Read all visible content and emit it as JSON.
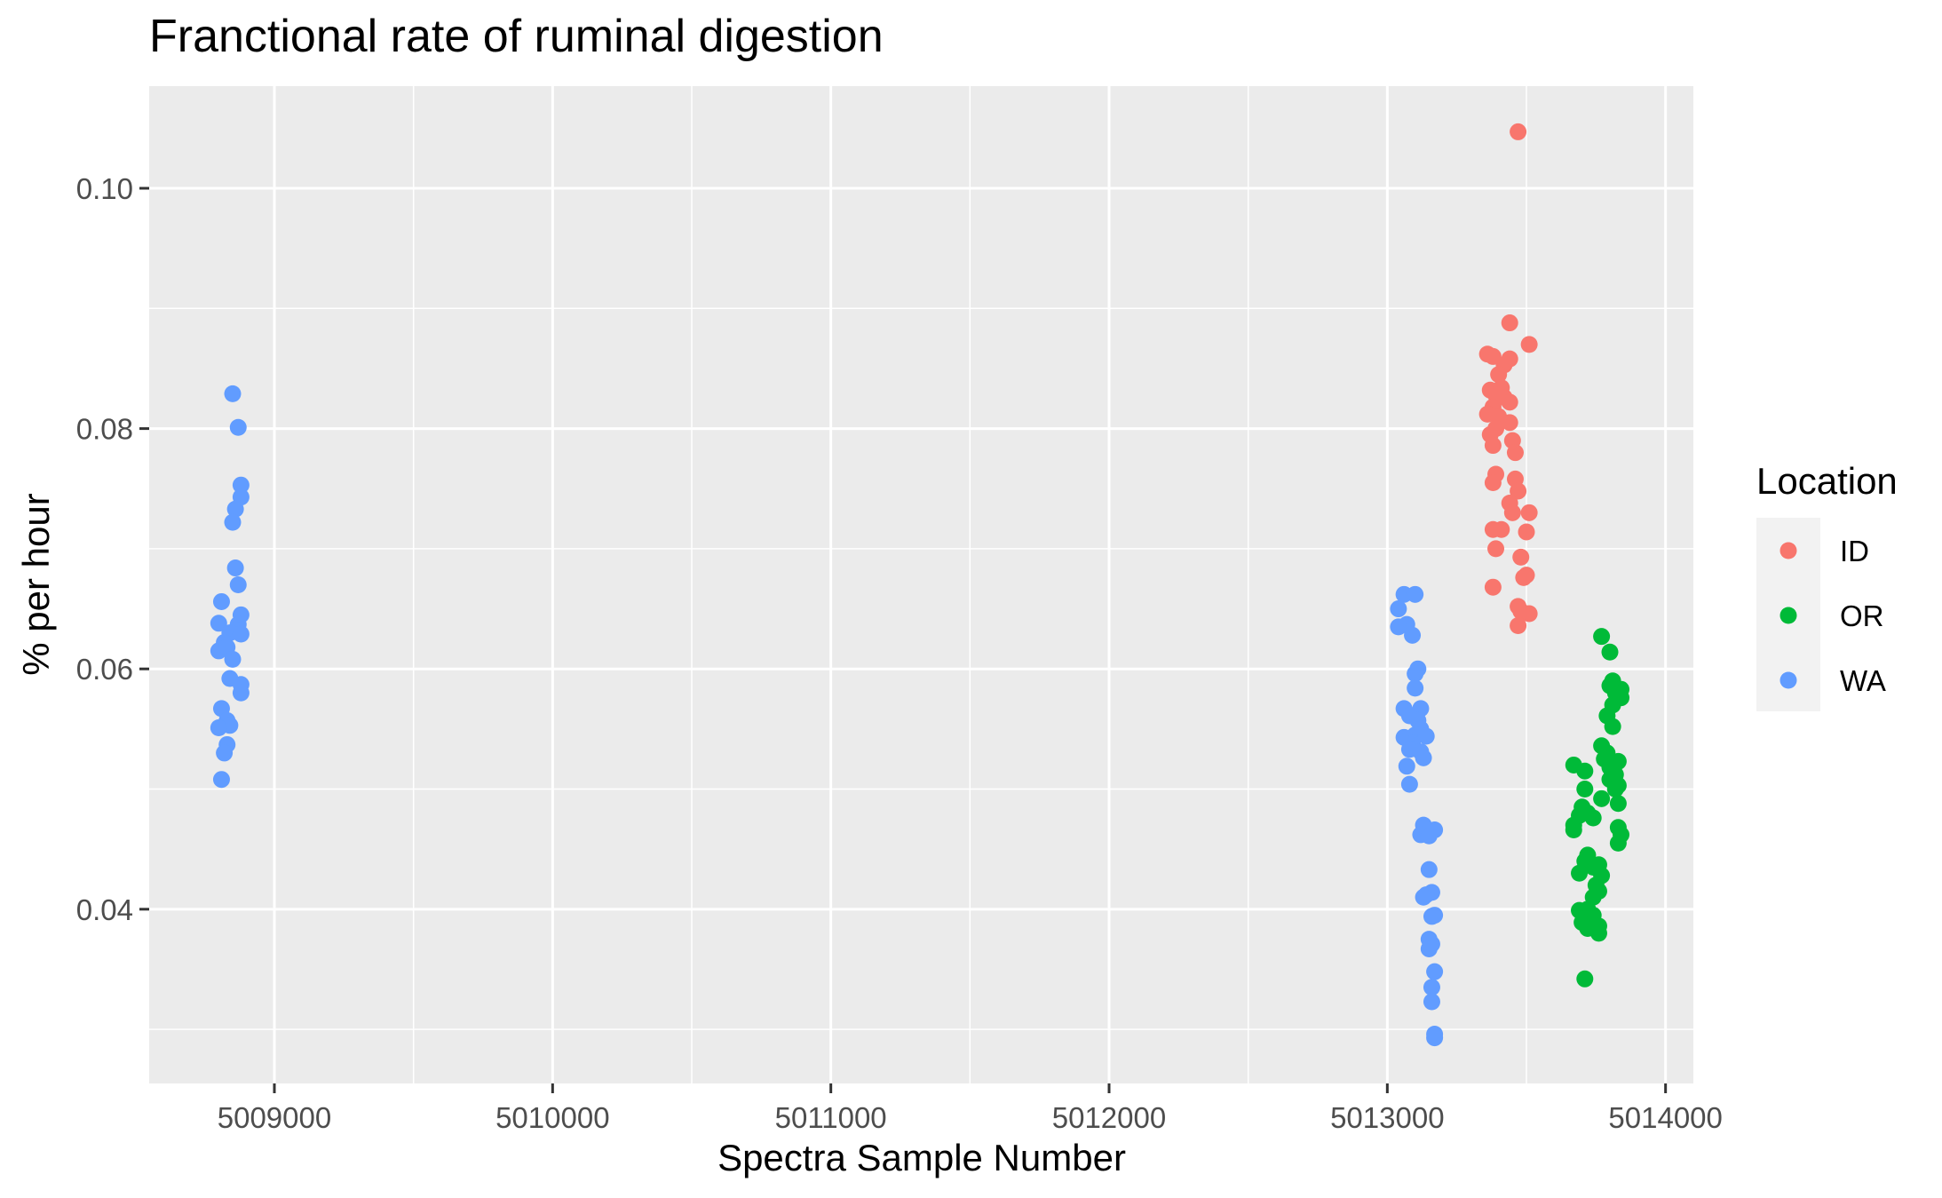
{
  "chart_data": {
    "type": "scatter",
    "title": "Franctional rate of ruminal digestion",
    "xlabel": "Spectra Sample Number",
    "ylabel": "% per hour",
    "xlim": [
      5008550,
      5014100
    ],
    "ylim": [
      0.0255,
      0.1085
    ],
    "x_ticks": [
      5009000,
      5010000,
      5011000,
      5012000,
      5013000,
      5014000
    ],
    "x_tick_labels": [
      "5009000",
      "5010000",
      "5011000",
      "5012000",
      "5013000",
      "5014000"
    ],
    "y_ticks": [
      0.04,
      0.06,
      0.08,
      0.1
    ],
    "y_tick_labels": [
      "0.04",
      "0.06",
      "0.08",
      "0.10"
    ],
    "grid": true,
    "legend": {
      "title": "Location",
      "position": "right"
    },
    "series": [
      {
        "name": "ID",
        "color": "#F8766D",
        "points": [
          [
            5013470,
            0.1047
          ],
          [
            5013440,
            0.0888
          ],
          [
            5013510,
            0.087
          ],
          [
            5013360,
            0.0862
          ],
          [
            5013380,
            0.086
          ],
          [
            5013440,
            0.0858
          ],
          [
            5013420,
            0.0853
          ],
          [
            5013400,
            0.0845
          ],
          [
            5013370,
            0.0832
          ],
          [
            5013410,
            0.0834
          ],
          [
            5013390,
            0.0828
          ],
          [
            5013420,
            0.0826
          ],
          [
            5013440,
            0.0822
          ],
          [
            5013380,
            0.0818
          ],
          [
            5013360,
            0.0812
          ],
          [
            5013400,
            0.081
          ],
          [
            5013440,
            0.0805
          ],
          [
            5013390,
            0.08
          ],
          [
            5013370,
            0.0795
          ],
          [
            5013450,
            0.079
          ],
          [
            5013380,
            0.0786
          ],
          [
            5013460,
            0.078
          ],
          [
            5013390,
            0.0762
          ],
          [
            5013460,
            0.0758
          ],
          [
            5013380,
            0.0755
          ],
          [
            5013470,
            0.0748
          ],
          [
            5013440,
            0.0738
          ],
          [
            5013450,
            0.073
          ],
          [
            5013510,
            0.073
          ],
          [
            5013380,
            0.0716
          ],
          [
            5013410,
            0.0716
          ],
          [
            5013500,
            0.0714
          ],
          [
            5013390,
            0.07
          ],
          [
            5013480,
            0.0693
          ],
          [
            5013500,
            0.0678
          ],
          [
            5013490,
            0.0676
          ],
          [
            5013380,
            0.0668
          ],
          [
            5013470,
            0.0652
          ],
          [
            5013480,
            0.0648
          ],
          [
            5013510,
            0.0646
          ],
          [
            5013470,
            0.0636
          ]
        ]
      },
      {
        "name": "OR",
        "color": "#00BA38",
        "points": [
          [
            5013770,
            0.0627
          ],
          [
            5013800,
            0.0614
          ],
          [
            5013810,
            0.059
          ],
          [
            5013840,
            0.0583
          ],
          [
            5013800,
            0.0586
          ],
          [
            5013820,
            0.058
          ],
          [
            5013840,
            0.0576
          ],
          [
            5013810,
            0.057
          ],
          [
            5013790,
            0.0561
          ],
          [
            5013810,
            0.0552
          ],
          [
            5013770,
            0.0536
          ],
          [
            5013790,
            0.053
          ],
          [
            5013780,
            0.0525
          ],
          [
            5013830,
            0.0523
          ],
          [
            5013670,
            0.052
          ],
          [
            5013800,
            0.0518
          ],
          [
            5013710,
            0.0515
          ],
          [
            5013820,
            0.0512
          ],
          [
            5013800,
            0.0508
          ],
          [
            5013830,
            0.0503
          ],
          [
            5013820,
            0.05
          ],
          [
            5013710,
            0.05
          ],
          [
            5013770,
            0.0492
          ],
          [
            5013830,
            0.0488
          ],
          [
            5013700,
            0.0485
          ],
          [
            5013720,
            0.048
          ],
          [
            5013690,
            0.0478
          ],
          [
            5013740,
            0.0476
          ],
          [
            5013670,
            0.047
          ],
          [
            5013830,
            0.0468
          ],
          [
            5013670,
            0.0466
          ],
          [
            5013840,
            0.0462
          ],
          [
            5013830,
            0.0455
          ],
          [
            5013720,
            0.0445
          ],
          [
            5013710,
            0.044
          ],
          [
            5013760,
            0.0437
          ],
          [
            5013740,
            0.0435
          ],
          [
            5013690,
            0.043
          ],
          [
            5013770,
            0.0428
          ],
          [
            5013750,
            0.042
          ],
          [
            5013760,
            0.0415
          ],
          [
            5013740,
            0.041
          ],
          [
            5013720,
            0.04
          ],
          [
            5013690,
            0.0399
          ],
          [
            5013740,
            0.0395
          ],
          [
            5013700,
            0.0389
          ],
          [
            5013760,
            0.0386
          ],
          [
            5013720,
            0.0384
          ],
          [
            5013760,
            0.038
          ],
          [
            5013710,
            0.0342
          ]
        ]
      },
      {
        "name": "WA",
        "color": "#619CFF",
        "points": [
          [
            5008850,
            0.0829
          ],
          [
            5008870,
            0.0801
          ],
          [
            5008880,
            0.0753
          ],
          [
            5008880,
            0.0743
          ],
          [
            5008860,
            0.0733
          ],
          [
            5008850,
            0.0722
          ],
          [
            5008860,
            0.0684
          ],
          [
            5008870,
            0.067
          ],
          [
            5008810,
            0.0656
          ],
          [
            5008880,
            0.0645
          ],
          [
            5008800,
            0.0638
          ],
          [
            5008870,
            0.0637
          ],
          [
            5008860,
            0.0632
          ],
          [
            5008840,
            0.063
          ],
          [
            5008880,
            0.0629
          ],
          [
            5008820,
            0.0622
          ],
          [
            5008800,
            0.0615
          ],
          [
            5008830,
            0.0618
          ],
          [
            5008850,
            0.0608
          ],
          [
            5008840,
            0.0592
          ],
          [
            5008880,
            0.0587
          ],
          [
            5008880,
            0.058
          ],
          [
            5008810,
            0.0567
          ],
          [
            5008830,
            0.0557
          ],
          [
            5008840,
            0.0553
          ],
          [
            5008800,
            0.0551
          ],
          [
            5008830,
            0.0537
          ],
          [
            5008820,
            0.053
          ],
          [
            5008810,
            0.0508
          ],
          [
            5013060,
            0.0662
          ],
          [
            5013100,
            0.0662
          ],
          [
            5013040,
            0.065
          ],
          [
            5013070,
            0.0637
          ],
          [
            5013040,
            0.0635
          ],
          [
            5013090,
            0.0628
          ],
          [
            5013110,
            0.06
          ],
          [
            5013100,
            0.0596
          ],
          [
            5013100,
            0.0584
          ],
          [
            5013060,
            0.0567
          ],
          [
            5013120,
            0.0567
          ],
          [
            5013080,
            0.0561
          ],
          [
            5013110,
            0.0557
          ],
          [
            5013120,
            0.055
          ],
          [
            5013100,
            0.0545
          ],
          [
            5013060,
            0.0543
          ],
          [
            5013140,
            0.0544
          ],
          [
            5013090,
            0.0538
          ],
          [
            5013080,
            0.0533
          ],
          [
            5013120,
            0.0531
          ],
          [
            5013130,
            0.0526
          ],
          [
            5013070,
            0.0519
          ],
          [
            5013080,
            0.0504
          ],
          [
            5013130,
            0.047
          ],
          [
            5013170,
            0.0466
          ],
          [
            5013120,
            0.0462
          ],
          [
            5013150,
            0.0461
          ],
          [
            5013150,
            0.0433
          ],
          [
            5013160,
            0.0414
          ],
          [
            5013140,
            0.0412
          ],
          [
            5013130,
            0.041
          ],
          [
            5013170,
            0.0395
          ],
          [
            5013160,
            0.0394
          ],
          [
            5013150,
            0.0375
          ],
          [
            5013160,
            0.0371
          ],
          [
            5013150,
            0.0367
          ],
          [
            5013170,
            0.0348
          ],
          [
            5013160,
            0.0335
          ],
          [
            5013160,
            0.0323
          ],
          [
            5013170,
            0.0296
          ],
          [
            5013170,
            0.0293
          ]
        ]
      }
    ]
  }
}
